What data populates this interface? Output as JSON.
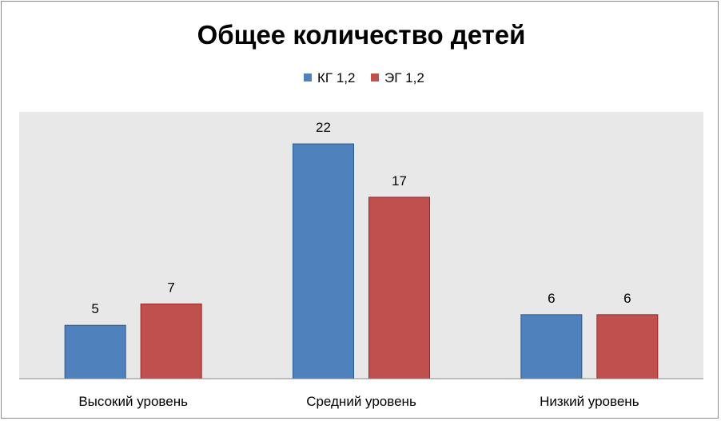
{
  "chart_data": {
    "type": "bar",
    "title": "Общее количество детей",
    "categories": [
      "Высокий уровень",
      "Средний уровень",
      "Низкий уровень"
    ],
    "series": [
      {
        "name": "КГ 1,2",
        "values": [
          5,
          22,
          6
        ],
        "color": "#4f81bd"
      },
      {
        "name": "ЭГ 1,2",
        "values": [
          7,
          17,
          6
        ],
        "color": "#c0504d"
      }
    ],
    "ylim": [
      0,
      25
    ],
    "legend": "top",
    "grid": false,
    "plot_background": "#e8e8e8"
  }
}
